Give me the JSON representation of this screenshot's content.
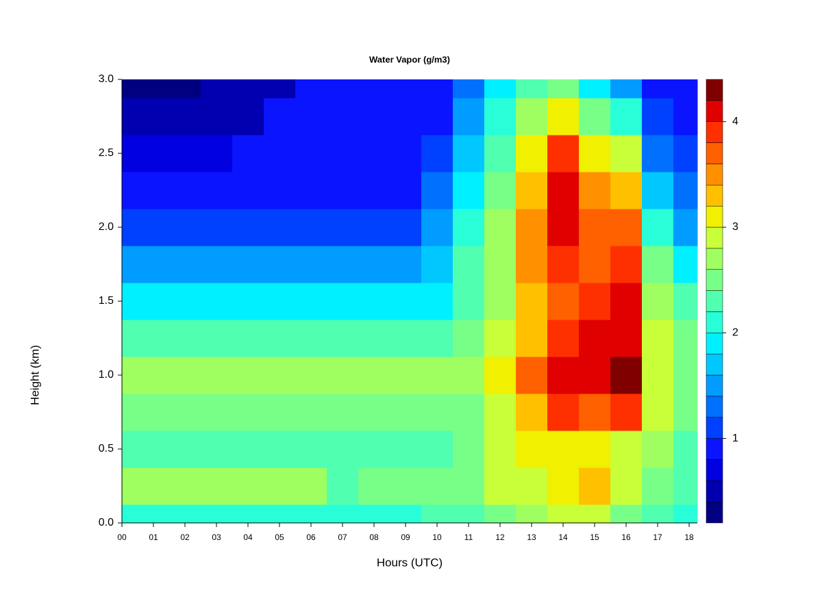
{
  "chart_data": {
    "type": "heatmap",
    "title": "Water Vapor (g/m3)",
    "x_label": "Hours (UTC)",
    "y_label": "Height (km)",
    "x": [
      0,
      1,
      2,
      3,
      4,
      5,
      6,
      7,
      8,
      9,
      10,
      11,
      12,
      13,
      14,
      15,
      16,
      17,
      18
    ],
    "y": [
      0,
      0.25,
      0.5,
      0.75,
      1,
      1.25,
      1.5,
      1.75,
      2,
      2.25,
      2.5,
      2.75,
      3
    ],
    "z": [
      [
        2.1,
        2.1,
        2.1,
        2.1,
        2.1,
        2.1,
        2.1,
        2.1,
        2.1,
        2.1,
        2.3,
        2.3,
        2.5,
        2.6,
        2.8,
        2.9,
        2.5,
        2.2,
        2.1
      ],
      [
        2.6,
        2.6,
        2.6,
        2.6,
        2.6,
        2.6,
        2.6,
        2.3,
        2.5,
        2.5,
        2.5,
        2.5,
        2.8,
        2.9,
        3.0,
        3.2,
        2.9,
        2.5,
        2.3
      ],
      [
        2.3,
        2.3,
        2.3,
        2.3,
        2.3,
        2.3,
        2.3,
        2.3,
        2.3,
        2.3,
        2.3,
        2.4,
        2.8,
        3.0,
        3.1,
        3.0,
        2.9,
        2.6,
        2.3
      ],
      [
        2.4,
        2.4,
        2.4,
        2.4,
        2.4,
        2.4,
        2.4,
        2.4,
        2.4,
        2.4,
        2.4,
        2.5,
        2.9,
        3.3,
        3.8,
        3.6,
        3.8,
        2.8,
        2.4
      ],
      [
        2.6,
        2.6,
        2.6,
        2.6,
        2.6,
        2.6,
        2.6,
        2.6,
        2.6,
        2.6,
        2.6,
        2.6,
        3.0,
        3.6,
        4.0,
        4.0,
        4.2,
        2.9,
        2.5
      ],
      [
        2.3,
        2.3,
        2.3,
        2.3,
        2.3,
        2.3,
        2.3,
        2.3,
        2.3,
        2.3,
        2.3,
        2.4,
        2.8,
        3.3,
        3.8,
        4.0,
        4.1,
        2.8,
        2.4
      ],
      [
        1.9,
        1.9,
        1.9,
        1.9,
        1.9,
        1.9,
        1.9,
        1.9,
        1.9,
        1.9,
        1.9,
        2.3,
        2.7,
        3.3,
        3.6,
        3.8,
        4.0,
        2.6,
        2.2
      ],
      [
        1.4,
        1.4,
        1.4,
        1.4,
        1.4,
        1.4,
        1.4,
        1.4,
        1.4,
        1.4,
        1.6,
        2.2,
        2.7,
        3.4,
        3.8,
        3.6,
        3.8,
        2.4,
        1.9
      ],
      [
        1.0,
        1.0,
        1.0,
        1.0,
        1.0,
        1.0,
        1.1,
        1.1,
        1.1,
        1.1,
        1.4,
        2.0,
        2.6,
        3.4,
        4.0,
        3.6,
        3.6,
        2.0,
        1.5
      ],
      [
        0.9,
        0.9,
        0.9,
        0.9,
        0.9,
        0.9,
        0.9,
        0.9,
        0.9,
        0.9,
        1.2,
        1.8,
        2.5,
        3.2,
        4.0,
        3.4,
        3.2,
        1.6,
        1.2
      ],
      [
        0.7,
        0.7,
        0.7,
        0.7,
        0.8,
        0.8,
        0.8,
        0.8,
        0.8,
        0.8,
        1.1,
        1.6,
        2.3,
        3.0,
        3.8,
        3.0,
        2.8,
        1.2,
        1.0
      ],
      [
        0.5,
        0.5,
        0.5,
        0.5,
        0.5,
        0.8,
        0.8,
        0.8,
        0.8,
        0.8,
        0.9,
        1.4,
        2.0,
        2.6,
        3.0,
        2.4,
        2.0,
        1.0,
        0.9
      ],
      [
        0.3,
        0.3,
        0.3,
        0.4,
        0.5,
        0.5,
        0.8,
        0.8,
        0.8,
        0.8,
        0.8,
        1.2,
        1.8,
        2.2,
        2.4,
        1.8,
        1.4,
        0.9,
        0.8
      ]
    ],
    "xlim": [
      0,
      18.26
    ],
    "ylim": [
      0,
      3
    ],
    "xticks": [
      {
        "value": 0,
        "label": "00"
      },
      {
        "value": 1,
        "label": "01"
      },
      {
        "value": 2,
        "label": "02"
      },
      {
        "value": 3,
        "label": "03"
      },
      {
        "value": 4,
        "label": "04"
      },
      {
        "value": 5,
        "label": "05"
      },
      {
        "value": 6,
        "label": "06"
      },
      {
        "value": 7,
        "label": "07"
      },
      {
        "value": 8,
        "label": "08"
      },
      {
        "value": 9,
        "label": "09"
      },
      10,
      11,
      12,
      13,
      14,
      15,
      16,
      17,
      18
    ],
    "yticks": [
      {
        "value": 0,
        "label": "0.0"
      },
      {
        "value": 0.5,
        "label": "0.5"
      },
      {
        "value": 1,
        "label": "1.0"
      },
      {
        "value": 1.5,
        "label": "1.5"
      },
      {
        "value": 2,
        "label": "2.0"
      },
      {
        "value": 2.5,
        "label": "2.5"
      },
      {
        "value": 3,
        "label": "3.0"
      }
    ],
    "levels": [
      0.2,
      0.4,
      0.6,
      0.8,
      1.0,
      1.2,
      1.4,
      1.6,
      1.8,
      2.0,
      2.2,
      2.4,
      2.6,
      2.8,
      3.0,
      3.2,
      3.4,
      3.6,
      3.8,
      4.0,
      4.2,
      4.4
    ],
    "colors": [
      "#000080",
      "#0000b0",
      "#0000e0",
      "#0a14ff",
      "#0040ff",
      "#0070ff",
      "#009cff",
      "#00c8ff",
      "#00f0ff",
      "#28ffd8",
      "#50ffb0",
      "#78ff88",
      "#a0ff60",
      "#c8ff38",
      "#f0f000",
      "#ffc000",
      "#ff9000",
      "#ff6000",
      "#ff3000",
      "#e00000",
      "#800000"
    ],
    "colorbar_ticks": [
      1,
      2,
      3,
      4
    ]
  }
}
